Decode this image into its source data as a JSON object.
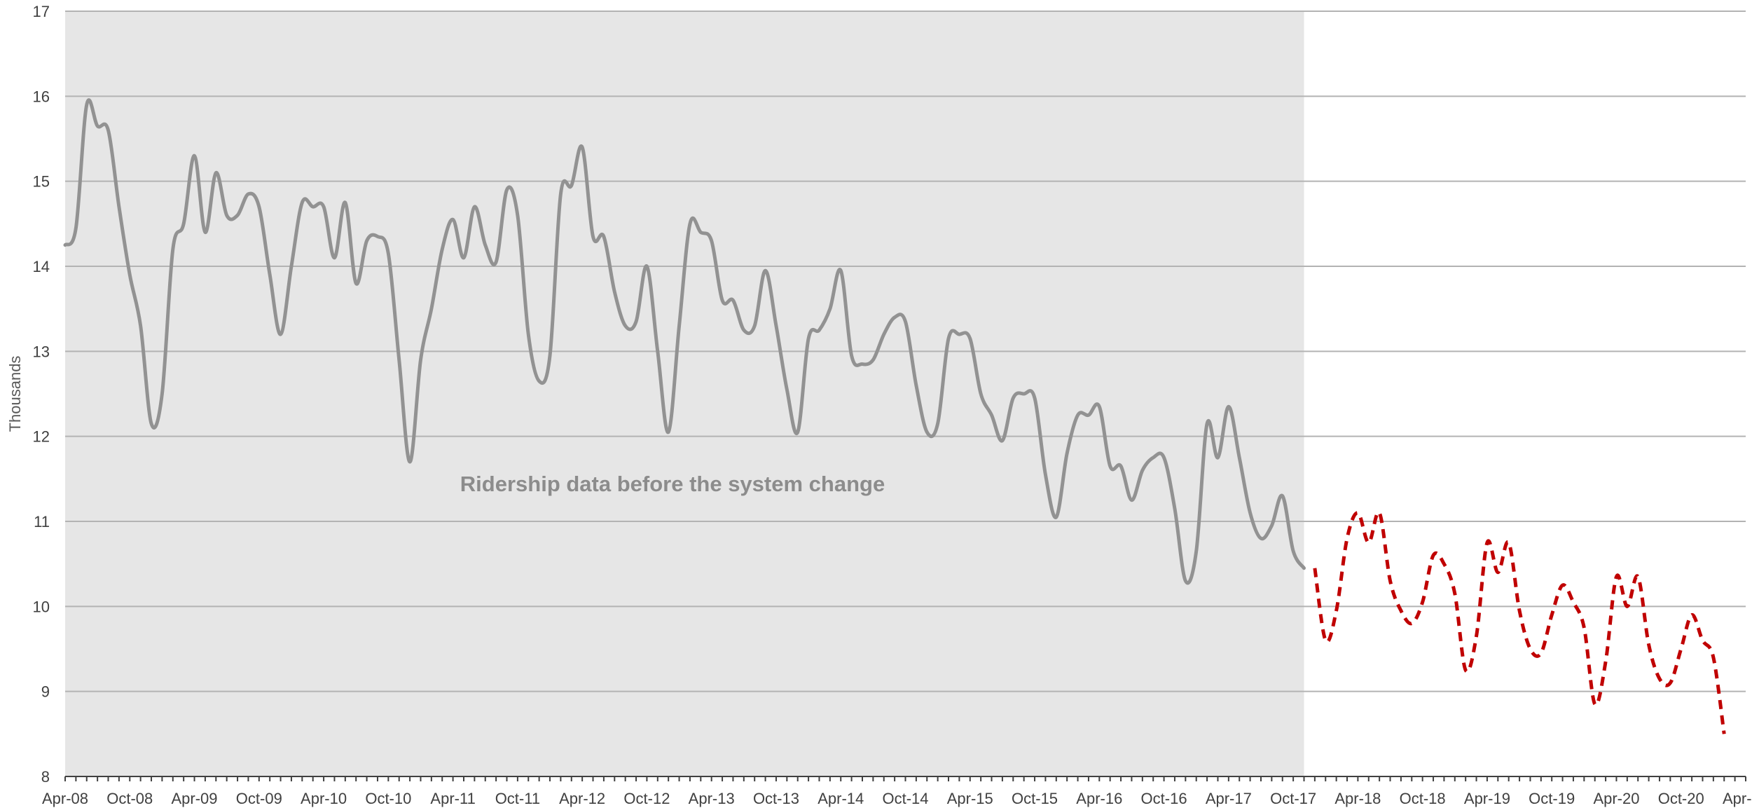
{
  "chart_data": {
    "type": "line",
    "title": "",
    "xlabel": "",
    "ylabel": "Thousands",
    "ylim": [
      8,
      17
    ],
    "yticks": [
      8,
      9,
      10,
      11,
      12,
      13,
      14,
      15,
      16,
      17
    ],
    "xlim": [
      0,
      156
    ],
    "x_tick_labels": [
      "Apr-08",
      "Oct-08",
      "Apr-09",
      "Oct-09",
      "Apr-10",
      "Oct-10",
      "Apr-11",
      "Oct-11",
      "Apr-12",
      "Oct-12",
      "Apr-13",
      "Oct-13",
      "Apr-14",
      "Oct-14",
      "Apr-15",
      "Oct-15",
      "Apr-16",
      "Oct-16",
      "Apr-17",
      "Oct-17",
      "Apr-18",
      "Oct-18",
      "Apr-19",
      "Oct-19",
      "Apr-20",
      "Oct-20",
      "Apr-21"
    ],
    "grid": true,
    "legend": "none",
    "shaded_region": {
      "from": "Apr-08",
      "to": "Nov-17",
      "color": "#e6e6e6",
      "annotation": "Ridership data before the system change"
    },
    "series": [
      {
        "style": "solid",
        "color": "#929292",
        "start": "Apr-08",
        "values": [
          14.25,
          14.45,
          15.9,
          15.65,
          15.6,
          14.7,
          13.9,
          13.3,
          12.15,
          12.5,
          14.2,
          14.5,
          15.3,
          14.4,
          15.1,
          14.6,
          14.6,
          14.85,
          14.7,
          13.9,
          13.2,
          14.0,
          14.75,
          14.7,
          14.7,
          14.1,
          14.75,
          13.8,
          14.3,
          14.35,
          14.15,
          12.9,
          11.7,
          12.9,
          13.5,
          14.2,
          14.55,
          14.1,
          14.7,
          14.25,
          14.05,
          14.9,
          14.6,
          13.2,
          12.65,
          12.95,
          14.85,
          14.95,
          15.4,
          14.35,
          14.35,
          13.7,
          13.3,
          13.35,
          14.0,
          13.0,
          12.05,
          13.3,
          14.5,
          14.4,
          14.3,
          13.6,
          13.6,
          13.25,
          13.3,
          13.95,
          13.3,
          12.55,
          12.05,
          13.15,
          13.25,
          13.5,
          13.95,
          12.95,
          12.85,
          12.9,
          13.2,
          13.4,
          13.35,
          12.6,
          12.05,
          12.15,
          13.15,
          13.2,
          13.15,
          12.5,
          12.25,
          11.95,
          12.45,
          12.5,
          12.45,
          11.55,
          11.05,
          11.8,
          12.25,
          12.25,
          12.35,
          11.65,
          11.65,
          11.25,
          11.6,
          11.75,
          11.75,
          11.15,
          10.3,
          10.65,
          12.15,
          11.75,
          12.35,
          11.75,
          11.1,
          10.8,
          10.95,
          11.3,
          10.65,
          10.45
        ]
      },
      {
        "style": "dashed",
        "color": "#c00000",
        "start": "Dec-17",
        "values": [
          10.45,
          9.6,
          9.95,
          10.8,
          11.1,
          10.75,
          11.1,
          10.3,
          9.95,
          9.8,
          10.05,
          10.6,
          10.5,
          10.15,
          9.25,
          9.65,
          10.75,
          10.4,
          10.75,
          9.95,
          9.5,
          9.45,
          9.9,
          10.25,
          10.05,
          9.75,
          8.85,
          9.35,
          10.35,
          10.0,
          10.35,
          9.55,
          9.15,
          9.1,
          9.5,
          9.9,
          9.6,
          9.4,
          8.5
        ]
      }
    ]
  }
}
